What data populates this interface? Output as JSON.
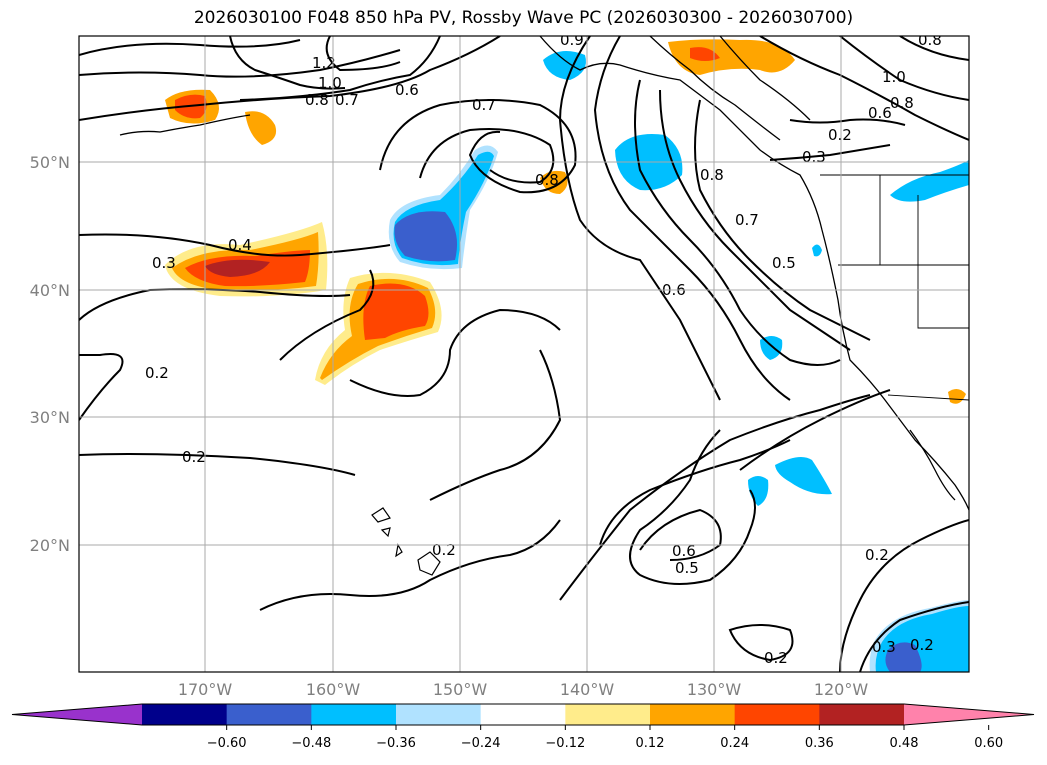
{
  "title": "2026030100 F048 850 hPa PV, Rossby Wave PC (2026030300 - 2026030700)",
  "lat_labels": [
    "50°N",
    "40°N",
    "30°N",
    "20°N"
  ],
  "lon_labels": [
    "170°W",
    "160°W",
    "150°W",
    "140°W",
    "130°W",
    "120°W"
  ],
  "colorbar": {
    "ticks": [
      "−0.60",
      "−0.48",
      "−0.36",
      "−0.24",
      "−0.12",
      "0.12",
      "0.24",
      "0.36",
      "0.48",
      "0.60"
    ],
    "colors": [
      "#9932cc",
      "#00008b",
      "#3a5fcd",
      "#00bfff",
      "#b0e2ff",
      "#ffffff",
      "#ffec8b",
      "#ffa500",
      "#ff4500",
      "#b22222",
      "#ff82ab"
    ]
  },
  "contour_labels": [
    "1.2",
    "1.0",
    "0.8",
    "0.7",
    "0.6",
    "0.9",
    "0.8",
    "1.0",
    "0.8",
    "0.6",
    "0.2",
    "0.3",
    "0.7",
    "0.8",
    "0.8",
    "0.7",
    "0.5",
    "0.6",
    "0.4",
    "0.3",
    "0.2",
    "0.2",
    "0.2",
    "0.6",
    "0.5",
    "0.2",
    "0.2",
    "0.3",
    "0.2"
  ],
  "map": {
    "region": "North Pacific / western North America",
    "lat_range": [
      10,
      60
    ],
    "lon_range": [
      -180,
      -110
    ],
    "field": "850 hPa PV",
    "shading": "Rossby Wave PC"
  }
}
